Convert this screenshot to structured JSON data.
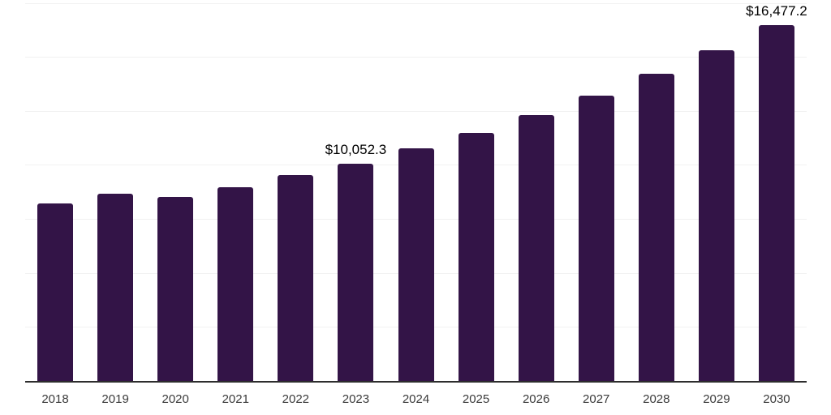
{
  "chart_data": {
    "type": "bar",
    "title": "",
    "xlabel": "",
    "ylabel": "",
    "categories": [
      "2018",
      "2019",
      "2020",
      "2021",
      "2022",
      "2023",
      "2024",
      "2025",
      "2026",
      "2027",
      "2028",
      "2029",
      "2030"
    ],
    "values": [
      8230,
      8680,
      8500,
      8980,
      9540,
      10052.3,
      10780,
      11490,
      12310,
      13210,
      14220,
      15300,
      16477.2
    ],
    "value_labels": [
      "",
      "",
      "",
      "",
      "",
      "$10,052.3",
      "",
      "",
      "",
      "",
      "",
      "",
      "$16,477.2"
    ],
    "ylim": [
      0,
      17500
    ],
    "gridline_step": 2500,
    "grid": "on",
    "legend": "none",
    "y_axis_tick_labels_visible": false,
    "colors": {
      "bar": "#331447",
      "axis_line": "#2d2d2d",
      "gridline": "#f1f1f1",
      "value_label": "#000000",
      "tick_label": "#3a3a3a",
      "background": "#ffffff"
    }
  }
}
